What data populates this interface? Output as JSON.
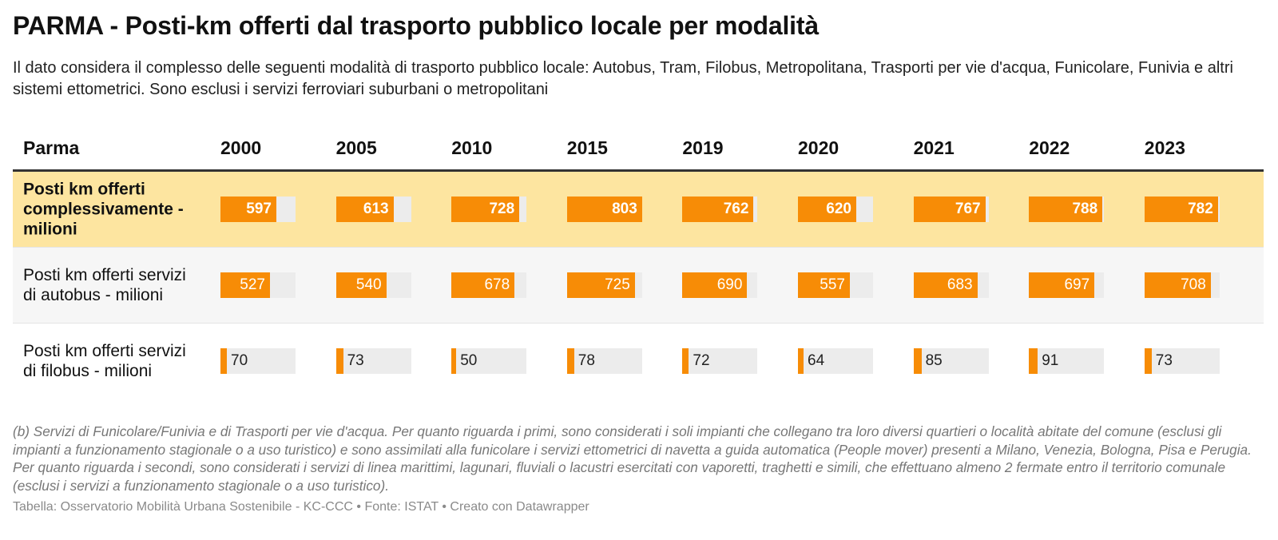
{
  "title": "PARMA - Posti-km offerti dal trasporto pubblico locale per modalità",
  "subtitle": "Il dato considera il complesso delle seguenti modalità di trasporto pubblico locale: Autobus, Tram, Filobus, Metropolitana, Trasporti per vie d'acqua, Funicolare, Funivia e altri sistemi ettometrici. Sono esclusi i servizi ferroviari suburbani o metropolitani",
  "notes": "(b) Servizi di Funicolare/Funivia e di Trasporti per vie d'acqua. Per quanto riguarda i primi, sono considerati i soli impianti che collegano tra loro diversi quartieri o località abitate del comune (esclusi gli impianti a funzionamento stagionale o a uso turistico) e sono assimilati alla funicolare i servizi ettometrici di navetta a guida automatica (People mover) presenti a Milano, Venezia, Bologna, Pisa e Perugia. Per quanto riguarda i secondi, sono considerati i servizi di linea marittimi, lagunari, fluviali o lacustri esercitati con vaporetti, traghetti e simili, che effettuano almeno 2 fermate entro il territorio comunale (esclusi i servizi a funzionamento stagionale o a uso turistico).",
  "source": "Tabella: Osservatorio Mobilità Urbana Sostenibile - KC-CCC • Fonte: ISTAT • Creato con Datawrapper",
  "colors": {
    "bar": "#f78c06",
    "track": "#ececec",
    "highlight_row": "#fde5a0"
  },
  "chart_data": {
    "type": "table",
    "corner_label": "Parma",
    "columns": [
      "2000",
      "2005",
      "2010",
      "2015",
      "2019",
      "2020",
      "2021",
      "2022",
      "2023"
    ],
    "rows": [
      {
        "label": "Posti km offerti complessivamente -milioni",
        "values": [
          597,
          613,
          728,
          803,
          762,
          620,
          767,
          788,
          782
        ],
        "highlight": true
      },
      {
        "label": "Posti km offerti servizi di autobus - milioni",
        "values": [
          527,
          540,
          678,
          725,
          690,
          557,
          683,
          697,
          708
        ],
        "highlight": false
      },
      {
        "label": "Posti km offerti servizi di filobus - milioni",
        "values": [
          70,
          73,
          50,
          78,
          72,
          64,
          85,
          91,
          73
        ],
        "highlight": false
      }
    ]
  }
}
